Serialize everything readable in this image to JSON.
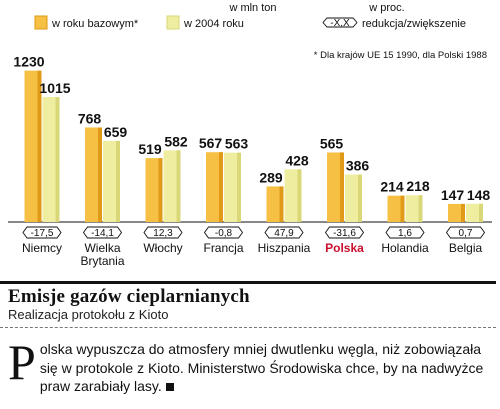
{
  "legend": {
    "unit_label": "w mln ton",
    "series_base_label": "w roku bazowym*",
    "series_2004_label": "w 2004 roku",
    "change_unit_label": "w proc.",
    "change_symbol": "-X,X",
    "change_label": "redukcja/zwiększenie"
  },
  "footnote": "* Dla krajów UE 15 1990, dla Polski 1988",
  "colors": {
    "base_bar": "#f5c044",
    "base_bar_side": "#e09a17",
    "y2004_bar": "#eeeda0",
    "y2004_bar_side": "#d9d777",
    "highlight_label": "#c8102e",
    "text": "#111111"
  },
  "chart_data": {
    "type": "bar",
    "title": "",
    "categories": [
      "Niemcy",
      "Wielka Brytania",
      "Włochy",
      "Francja",
      "Hiszpania",
      "Polska",
      "Holandia",
      "Belgia"
    ],
    "category_lines": [
      [
        "Niemcy"
      ],
      [
        "Wielka",
        "Brytania"
      ],
      [
        "Włochy"
      ],
      [
        "Francja"
      ],
      [
        "Hiszpania"
      ],
      [
        "Polska"
      ],
      [
        "Holandia"
      ],
      [
        "Belgia"
      ]
    ],
    "highlight_category": "Polska",
    "series": [
      {
        "name": "w roku bazowym*",
        "values": [
          1230,
          768,
          519,
          567,
          289,
          565,
          214,
          147
        ]
      },
      {
        "name": "w 2004 roku",
        "values": [
          1015,
          659,
          582,
          563,
          428,
          386,
          218,
          148
        ]
      }
    ],
    "value_labels": [
      [
        "1230",
        "768",
        "519",
        "567",
        "289",
        "565",
        "214",
        "147"
      ],
      [
        "1015",
        "659",
        "582",
        "563",
        "428",
        "386",
        "218",
        "148"
      ]
    ],
    "change_percent": [
      -17.5,
      -14.1,
      12.3,
      -0.8,
      47.9,
      -31.6,
      1.6,
      0.7
    ],
    "change_labels": [
      "-17,5",
      "-14,1",
      "12,3",
      "-0,8",
      "47,9",
      "-31,6",
      "1,6",
      "0,7"
    ],
    "ylim": [
      0,
      1300
    ],
    "grid": false,
    "legend_position": "top"
  },
  "article": {
    "headline": "Emisje gazów cieplarnianych",
    "subheadline": "Realizacja protokołu z Kioto",
    "dropcap": "P",
    "body": "olska wypuszcza do atmosfery mniej dwutlenku węgla, niż zobowiązała się w protokole z Kioto. Ministerstwo Środowiska chce, by na nadwyżce praw zarabiały lasy."
  }
}
